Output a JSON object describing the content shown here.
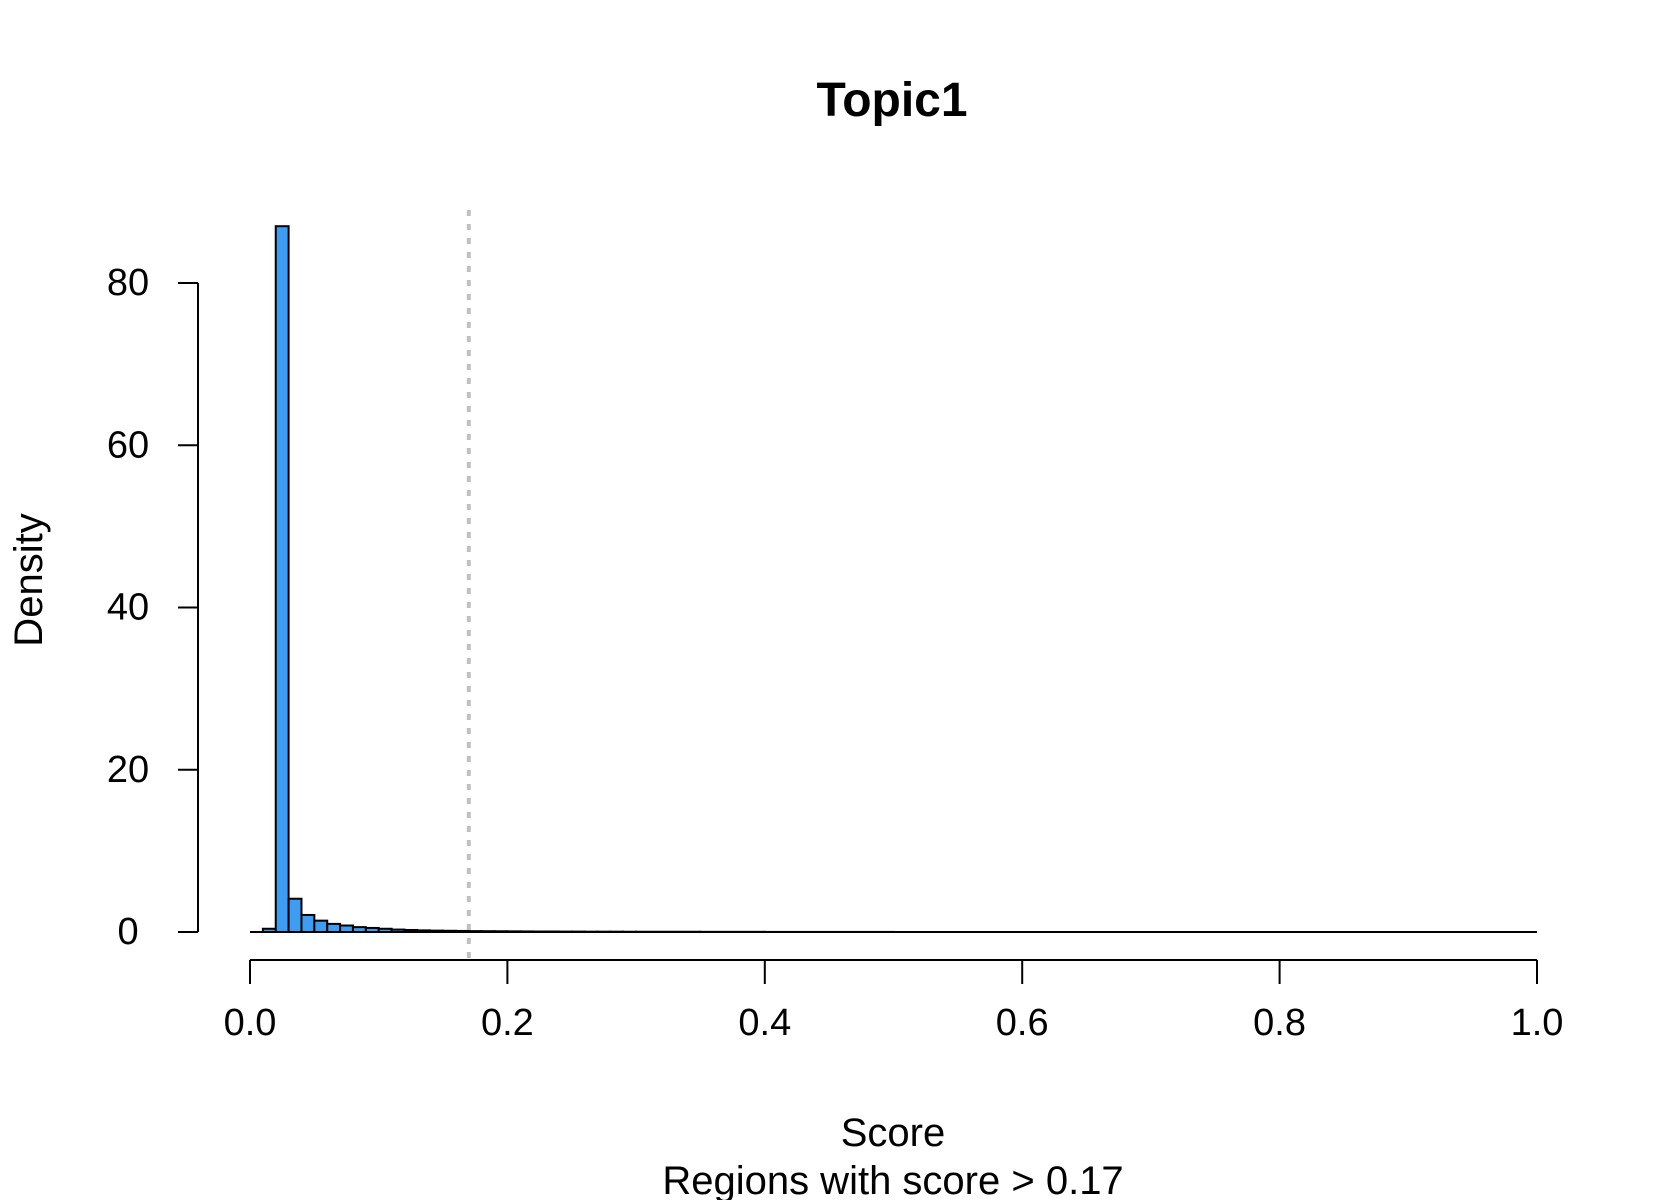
{
  "chart_data": {
    "type": "bar",
    "title": "Topic1",
    "xlabel": "Score",
    "xlabel_sub": "Regions with score > 0.17",
    "ylabel": "Density",
    "xlim": [
      0,
      1
    ],
    "ylim": [
      0,
      87
    ],
    "x_ticks": [
      0.0,
      0.2,
      0.4,
      0.6,
      0.8,
      1.0
    ],
    "x_tick_labels": [
      "0.0",
      "0.2",
      "0.4",
      "0.6",
      "0.8",
      "1.0"
    ],
    "y_ticks": [
      0,
      20,
      40,
      60,
      80
    ],
    "y_tick_labels": [
      "0",
      "20",
      "40",
      "60",
      "80"
    ],
    "bin_width": 0.01,
    "bins": [
      {
        "x0": 0.01,
        "x1": 0.02,
        "value": 0.4
      },
      {
        "x0": 0.02,
        "x1": 0.03,
        "value": 87
      },
      {
        "x0": 0.03,
        "x1": 0.04,
        "value": 4.1
      },
      {
        "x0": 0.04,
        "x1": 0.05,
        "value": 2.1
      },
      {
        "x0": 0.05,
        "x1": 0.06,
        "value": 1.4
      },
      {
        "x0": 0.06,
        "x1": 0.07,
        "value": 1.0
      },
      {
        "x0": 0.07,
        "x1": 0.08,
        "value": 0.8
      },
      {
        "x0": 0.08,
        "x1": 0.09,
        "value": 0.6
      },
      {
        "x0": 0.09,
        "x1": 0.1,
        "value": 0.5
      },
      {
        "x0": 0.1,
        "x1": 0.11,
        "value": 0.4
      },
      {
        "x0": 0.11,
        "x1": 0.12,
        "value": 0.3
      },
      {
        "x0": 0.12,
        "x1": 0.13,
        "value": 0.25
      },
      {
        "x0": 0.13,
        "x1": 0.14,
        "value": 0.2
      },
      {
        "x0": 0.14,
        "x1": 0.15,
        "value": 0.17
      },
      {
        "x0": 0.15,
        "x1": 0.16,
        "value": 0.15
      },
      {
        "x0": 0.16,
        "x1": 0.17,
        "value": 0.13
      },
      {
        "x0": 0.17,
        "x1": 0.18,
        "value": 0.11
      },
      {
        "x0": 0.18,
        "x1": 0.19,
        "value": 0.1
      },
      {
        "x0": 0.19,
        "x1": 0.2,
        "value": 0.09
      },
      {
        "x0": 0.2,
        "x1": 0.21,
        "value": 0.08
      },
      {
        "x0": 0.21,
        "x1": 0.22,
        "value": 0.07
      },
      {
        "x0": 0.22,
        "x1": 0.23,
        "value": 0.06
      },
      {
        "x0": 0.23,
        "x1": 0.24,
        "value": 0.06
      },
      {
        "x0": 0.24,
        "x1": 0.25,
        "value": 0.05
      },
      {
        "x0": 0.25,
        "x1": 0.26,
        "value": 0.05
      },
      {
        "x0": 0.26,
        "x1": 0.27,
        "value": 0.04
      },
      {
        "x0": 0.27,
        "x1": 0.28,
        "value": 0.04
      },
      {
        "x0": 0.28,
        "x1": 0.29,
        "value": 0.04
      },
      {
        "x0": 0.29,
        "x1": 0.3,
        "value": 0.03
      },
      {
        "x0": 0.3,
        "x1": 0.35,
        "value": 0.03
      },
      {
        "x0": 0.35,
        "x1": 0.4,
        "value": 0.02
      },
      {
        "x0": 0.4,
        "x1": 0.5,
        "value": 0.01
      },
      {
        "x0": 0.5,
        "x1": 1.0,
        "value": 0.0
      }
    ],
    "threshold": 0.17,
    "grid": false,
    "colors": {
      "bar_fill": "#3d9df3",
      "bar_stroke": "#000000",
      "threshold_line": "#c0c0c0",
      "axis": "#000000"
    }
  }
}
